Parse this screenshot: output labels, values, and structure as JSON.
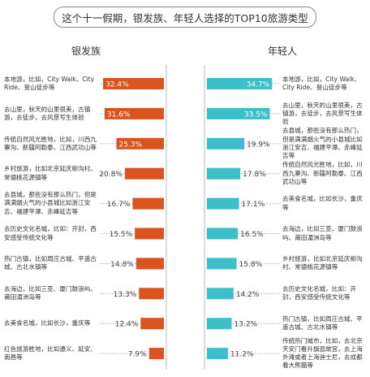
{
  "title": "这个十一假期，银发族、年轻人选择的TOP10旅游类型",
  "chart_data": [
    {
      "type": "bar",
      "title": "银发族",
      "color": "#d9541e",
      "xlim": [
        0,
        40
      ],
      "categories": [
        "本地游，比如，City Walk、City Ride、登山徒步等",
        "去山里，秋天的山里很美，古镇游，去徒步，去风景写生体验",
        "传统自然风光胜地，比如，川西九寨沟、新疆阿勒泰、江西武功山等",
        "乡村旅游，比如北京延庆柳沟村、常德桃花源镇等",
        "去县城，那些没有那么热门，但是满满烟火气的小县城比如浙江安吉、福建平潭、赤峰延吉等",
        "去历史文化名城，比如：开封，西安感受传统文化等",
        "热门古镇，比如周庄古城、平遥古城、古北水镇等",
        "去海边，比如三亚、厦门鼓浪屿、莆田湄洲岛等",
        "去美食名城，比如长沙，重庆等",
        "红色旅游胜地，比如遵义、延安、南昌等"
      ],
      "values": [
        32.4,
        31.6,
        25.3,
        20.8,
        16.7,
        15.5,
        14.8,
        13.3,
        12.4,
        7.9
      ],
      "value_labels": [
        "32.4%",
        "31.6%",
        "25.3%",
        "20.8%",
        "16.7%",
        "15.5%",
        "14.8%",
        "13.3%",
        "12.4%",
        "7.9%"
      ]
    },
    {
      "type": "bar",
      "title": "年轻人",
      "color": "#3dbfc9",
      "xlim": [
        0,
        40
      ],
      "categories": [
        "本地游，比如，City Walk、City Ride、登山徒步等",
        "去山里，秋天的山里很美，古镇游，去徒步，去风景写生体验",
        "去县城，那些没有那么热门，但是满满烟火气的小县城比如浙江安吉、福建平潭、赤峰延吉等",
        "传统自然风光胜地，比如，川西九寨沟、新疆阿勒泰、江西武功山等",
        "去美食名城，比如长沙，重庆等",
        "去海边，比如三亚、厦门鼓浪屿、莆田湄洲岛等",
        "乡村旅游，比如北京延庆柳沟村、常德桃花源镇等",
        "去历史文化名城，比如：开封，西安感受传统文化等",
        "热门古镇，比如周庄古城、平遥古城、古北水镇等",
        "传统热门城市，比如，去北京天安门看升旗逛故宫，去上海外滩或者上海迪士尼，去成都看大熊猫等"
      ],
      "values": [
        34.7,
        33.5,
        19.9,
        17.8,
        17.1,
        16.5,
        15.8,
        14.2,
        13.2,
        11.2
      ],
      "value_labels": [
        "34.7%",
        "33.5%",
        "19.9%",
        "17.8%",
        "17.1%",
        "16.5%",
        "15.8%",
        "14.2%",
        "13.2%",
        "11.2%"
      ]
    }
  ]
}
